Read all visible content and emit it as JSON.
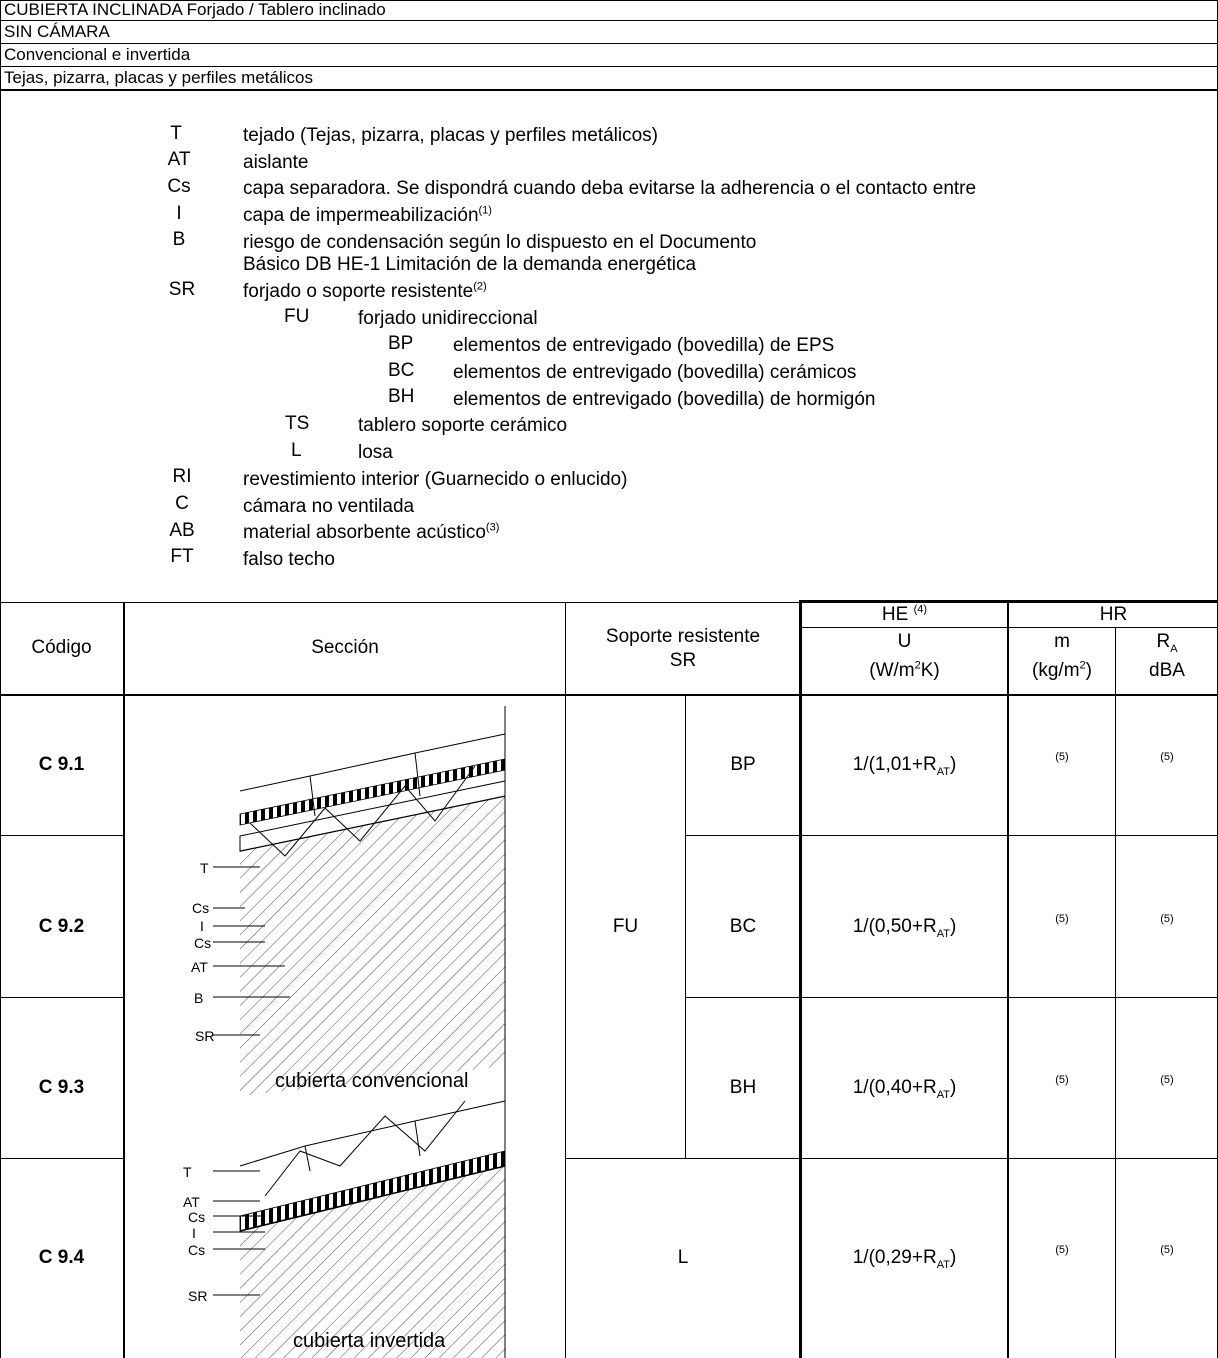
{
  "header": {
    "line1": "CUBIERTA INCLINADA Forjado / Tablero inclinado",
    "line2": "SIN CÁMARA",
    "line3": "Convencional e invertida",
    "line4": "Tejas, pizarra, placas y perfiles metálicos"
  },
  "legend": [
    {
      "code": "T",
      "text": "tejado (Tejas, pizarra, placas y perfiles metálicos)"
    },
    {
      "code": "AT",
      "text": "aislante"
    },
    {
      "code": "Cs",
      "text": "capa separadora. Se dispondrá cuando deba evitarse la adherencia o el contacto entre"
    },
    {
      "code": "I",
      "text": "capa de impermeabilización",
      "sup": "(1)"
    },
    {
      "code": "B",
      "text": "riesgo de condensación según lo dispuesto en el Documento"
    },
    {
      "code": "",
      "text": "Básico DB HE-1 Limitación de la demanda energética"
    },
    {
      "code": "SR",
      "text": "forjado o soporte resistente",
      "sup": "(2)"
    },
    {
      "code": "FU",
      "text": "forjado unidireccional"
    },
    {
      "code": "BP",
      "text": "elementos de entrevigado (bovedilla) de EPS"
    },
    {
      "code": "BC",
      "text": "elementos de entrevigado (bovedilla) cerámicos"
    },
    {
      "code": "BH",
      "text": "elementos de entrevigado (bovedilla) de hormigón"
    },
    {
      "code": "TS",
      "text": "tablero soporte cerámico"
    },
    {
      "code": "L",
      "text": "losa"
    },
    {
      "code": "RI",
      "text": "revestimiento interior (Guarnecido o enlucido)"
    },
    {
      "code": "C",
      "text": "cámara no ventilada"
    },
    {
      "code": "AB",
      "text": "material absorbente acústico",
      "sup": "(3)"
    },
    {
      "code": "FT",
      "text": "falso techo"
    }
  ],
  "table": {
    "col_codigo": "Código",
    "col_seccion": "Sección",
    "col_soporte_1": "Soporte resistente",
    "col_soporte_2": "SR",
    "col_he": "HE",
    "col_he_sup": "(4)",
    "col_u": "U",
    "col_u_unit_a": "(W/m",
    "col_u_unit_sup": "2",
    "col_u_unit_b": "K)",
    "col_hr": "HR",
    "col_m": "m",
    "col_m_unit_a": "(kg/m",
    "col_m_unit_sup": "2",
    "col_m_unit_b": ")",
    "col_ra": "R",
    "col_ra_sub": "A",
    "col_ra_unit": "dBA",
    "fu": "FU",
    "l": "L",
    "note5": "(5)",
    "rows": [
      {
        "code": "C 9.1",
        "sub": "BP",
        "u_a": "1/(1,01+R",
        "u_sub": "AT",
        "u_b": ")"
      },
      {
        "code": "C 9.2",
        "sub": "BC",
        "u_a": "1/(0,50+R",
        "u_sub": "AT",
        "u_b": ")"
      },
      {
        "code": "C 9.3",
        "sub": "BH",
        "u_a": "1/(0,40+R",
        "u_sub": "AT",
        "u_b": ")"
      },
      {
        "code": "C 9.4",
        "sub": "",
        "u_a": "1/(0,29+R",
        "u_sub": "AT",
        "u_b": ")"
      }
    ]
  },
  "drawing": {
    "top_labels": [
      "T",
      "Cs",
      "I",
      "Cs",
      "AT",
      "B",
      "SR"
    ],
    "top_caption": "cubierta convencional",
    "bottom_labels": [
      "T",
      "AT",
      "Cs",
      "I",
      "Cs",
      "SR"
    ],
    "bottom_caption": "cubierta invertida"
  }
}
